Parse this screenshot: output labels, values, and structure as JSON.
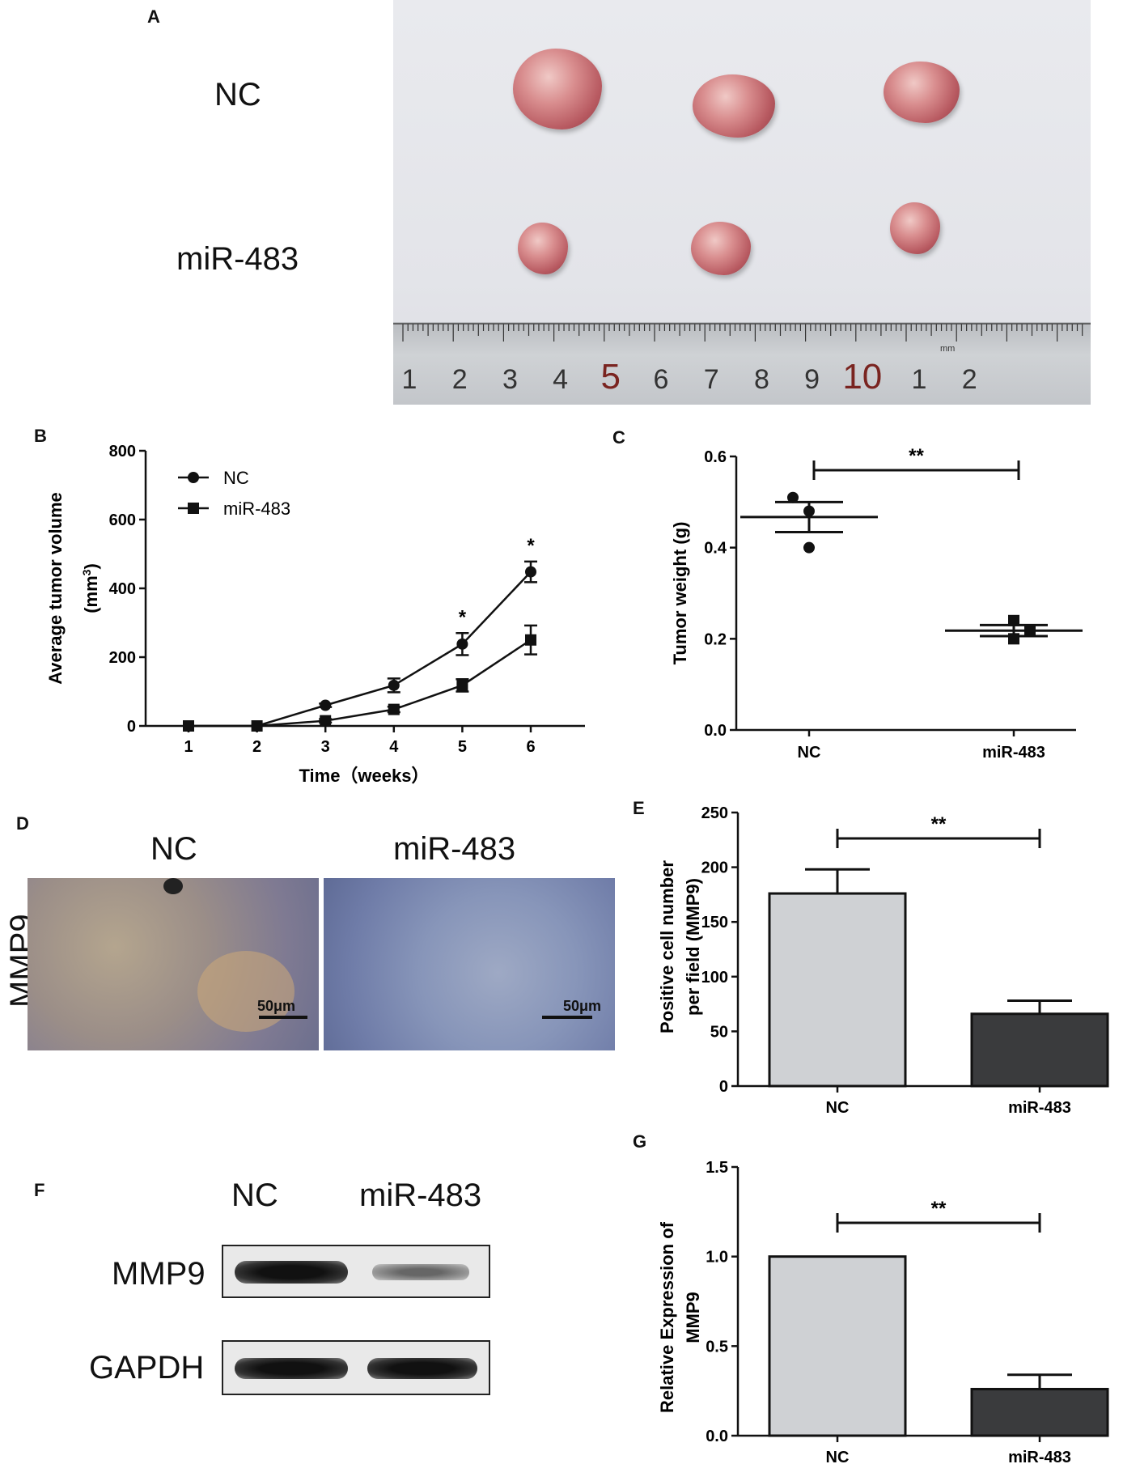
{
  "panel_a": {
    "letter": "A",
    "row_labels": [
      "NC",
      "miR-483"
    ],
    "ruler_numbers": [
      "1",
      "2",
      "3",
      "4",
      "5",
      "6",
      "7",
      "8",
      "9",
      "10",
      "1",
      "2"
    ],
    "ruler_unit": "mm"
  },
  "panel_d": {
    "letter": "D",
    "col_labels": [
      "NC",
      "miR-483"
    ],
    "row_label": "MMP9",
    "scale_bar": "50μm"
  },
  "panel_f": {
    "letter": "F",
    "col_labels": [
      "NC",
      "miR-483"
    ],
    "row_labels": [
      "MMP9",
      "GAPDH"
    ]
  },
  "chart_data": [
    {
      "id": "B",
      "type": "line",
      "xlabel": "Time（weeks）",
      "ylabel": "Average tumor volume",
      "ylabel_unit": "(mm3)",
      "x": [
        1,
        2,
        3,
        4,
        5,
        6
      ],
      "ylim": [
        0,
        800
      ],
      "yticks": [
        0,
        200,
        400,
        600,
        800
      ],
      "series": [
        {
          "name": "NC",
          "marker": "circle",
          "values": [
            0,
            0,
            60,
            118,
            238,
            448
          ],
          "errors": [
            0,
            0,
            5,
            20,
            32,
            30
          ]
        },
        {
          "name": "miR-483",
          "marker": "square",
          "values": [
            0,
            0,
            15,
            48,
            118,
            250
          ],
          "errors": [
            0,
            0,
            5,
            8,
            18,
            42
          ]
        }
      ],
      "annotations": [
        {
          "x": 5,
          "text": "*"
        },
        {
          "x": 6,
          "text": "*"
        }
      ]
    },
    {
      "id": "C",
      "type": "scatter",
      "ylabel": "Tumor weight (g)",
      "categories": [
        "NC",
        "miR-483"
      ],
      "ylim": [
        0,
        0.6
      ],
      "yticks": [
        "0.0",
        "0.2",
        "0.4",
        "0.6"
      ],
      "points": [
        [
          0.51,
          0.48,
          0.4
        ],
        [
          0.24,
          0.22,
          0.2
        ]
      ],
      "points_marker": [
        "circle",
        "square"
      ],
      "mean": [
        0.467,
        0.218
      ],
      "sem": [
        0.033,
        0.012
      ],
      "significance": "**"
    },
    {
      "id": "E",
      "type": "bar",
      "ylabel": "Positive cell number per field (MMP9)",
      "categories": [
        "NC",
        "miR-483"
      ],
      "values": [
        176,
        66
      ],
      "errors": [
        22,
        12
      ],
      "bar_colors": [
        "#cfd1d4",
        "#3a3b3d"
      ],
      "ylim": [
        0,
        250
      ],
      "yticks": [
        0,
        50,
        100,
        150,
        200,
        250
      ],
      "significance": "**"
    },
    {
      "id": "G",
      "type": "bar",
      "ylabel": "Relative Expression of MMP9",
      "categories": [
        "NC",
        "miR-483"
      ],
      "values": [
        1.0,
        0.26
      ],
      "errors": [
        0,
        0.08
      ],
      "bar_colors": [
        "#cfd1d4",
        "#3a3b3d"
      ],
      "ylim": [
        0,
        1.5
      ],
      "yticks": [
        "0.0",
        "0.5",
        "1.0",
        "1.5"
      ],
      "significance": "**"
    }
  ]
}
